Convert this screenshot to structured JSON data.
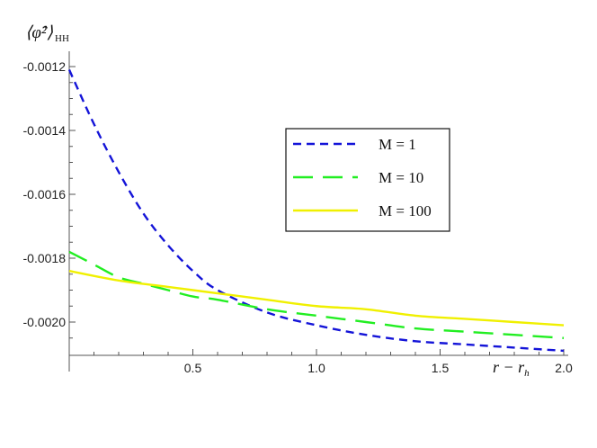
{
  "chart_data": {
    "type": "line",
    "ylabel": "⟨φ̂²⟩",
    "ylabel_subscript": "HH",
    "xlabel": "r − r",
    "xlabel_subscript": "h",
    "xlim": [
      0,
      2.0
    ],
    "ylim": [
      -0.00209,
      -0.00118
    ],
    "x_ticks": [
      0.5,
      1.0,
      1.5,
      2.0
    ],
    "x_tick_labels": [
      "0.5",
      "1.0",
      "1.5",
      "2.0"
    ],
    "y_ticks": [
      -0.0012,
      -0.0014,
      -0.0016,
      -0.0018,
      -0.002
    ],
    "y_tick_labels": [
      "-0.0012",
      "-0.0014",
      "-0.0016",
      "-0.0018",
      "-0.0020"
    ],
    "grid": false,
    "legend_position": "top-right",
    "series": [
      {
        "name": "M = 1",
        "color": "#1414d8",
        "dash": "short",
        "x": [
          0,
          0.1,
          0.2,
          0.3,
          0.4,
          0.5,
          0.6,
          0.8,
          1.0,
          1.2,
          1.4,
          1.6,
          1.8,
          2.0
        ],
        "y": [
          -0.00121,
          -0.00138,
          -0.00153,
          -0.00166,
          -0.00176,
          -0.00184,
          -0.0019,
          -0.00197,
          -0.00201,
          -0.00204,
          -0.00206,
          -0.00207,
          -0.00208,
          -0.00209
        ]
      },
      {
        "name": "M = 10",
        "color": "#22ee22",
        "dash": "long",
        "x": [
          0,
          0.1,
          0.2,
          0.3,
          0.4,
          0.5,
          0.6,
          0.8,
          1.0,
          1.2,
          1.4,
          1.6,
          1.8,
          2.0
        ],
        "y": [
          -0.00178,
          -0.00182,
          -0.00186,
          -0.00188,
          -0.0019,
          -0.00192,
          -0.00193,
          -0.00196,
          -0.00198,
          -0.002,
          -0.00202,
          -0.00203,
          -0.00204,
          -0.00205
        ]
      },
      {
        "name": "M = 100",
        "color": "#f0f000",
        "dash": "solid",
        "x": [
          0,
          0.2,
          0.4,
          0.6,
          0.8,
          1.0,
          1.2,
          1.4,
          1.6,
          1.8,
          2.0
        ],
        "y": [
          -0.00184,
          -0.00187,
          -0.00189,
          -0.00191,
          -0.00193,
          -0.00195,
          -0.00196,
          -0.00198,
          -0.00199,
          -0.002,
          -0.00201
        ]
      }
    ]
  }
}
